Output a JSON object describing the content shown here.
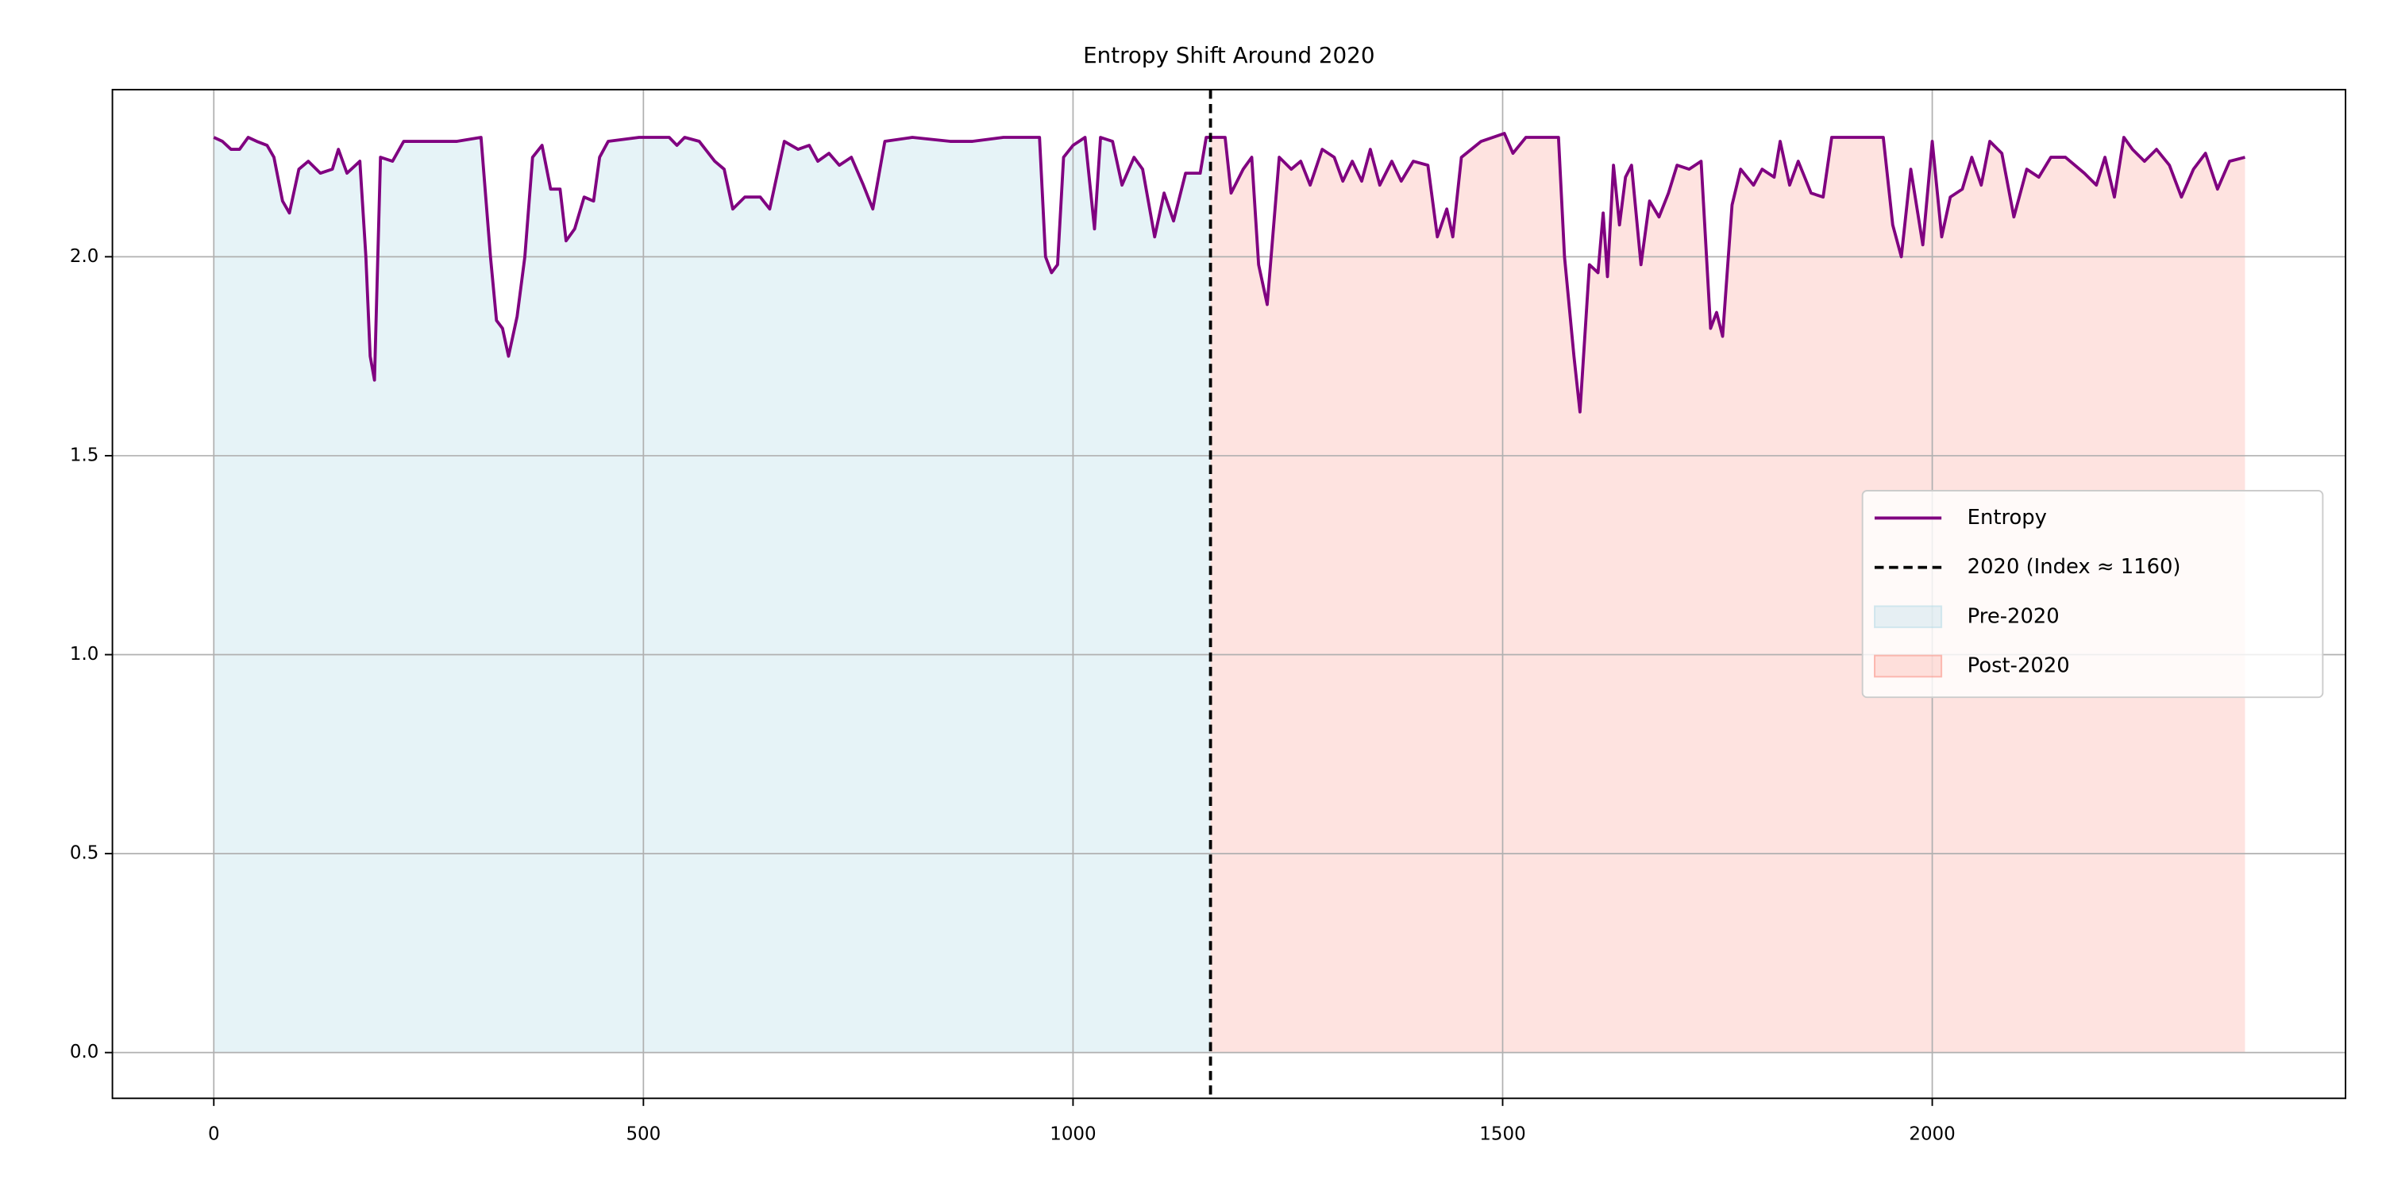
{
  "chart_data": {
    "type": "line",
    "title": "Entropy Shift Around 2020",
    "series": [
      {
        "name": "Entropy",
        "color": "#800080",
        "x": [
          0,
          10,
          20,
          30,
          40,
          50,
          62,
          70,
          80,
          88,
          99,
          110,
          124,
          138,
          145,
          155,
          170,
          177,
          182,
          187,
          194,
          208,
          221,
          247,
          283,
          311,
          322,
          329,
          336,
          343,
          353,
          362,
          371,
          382,
          392,
          403,
          410,
          420,
          431,
          442,
          449,
          459,
          495,
          530,
          539,
          548,
          565,
          583,
          594,
          604,
          618,
          636,
          647,
          657,
          664,
          680,
          693,
          703,
          716,
          728,
          742,
          756,
          767,
          781,
          813,
          857,
          883,
          919,
          961,
          968,
          975,
          982,
          989,
          1000,
          1014,
          1025,
          1032,
          1046,
          1057,
          1071,
          1081,
          1095,
          1106,
          1117,
          1131,
          1148,
          1155,
          1177,
          1184,
          1198,
          1208,
          1216,
          1226,
          1240,
          1254,
          1265,
          1276,
          1290,
          1304,
          1314,
          1325,
          1336,
          1346,
          1357,
          1371,
          1382,
          1396,
          1413,
          1424,
          1435,
          1442,
          1452,
          1475,
          1502,
          1512,
          1527,
          1565,
          1572,
          1583,
          1590,
          1601,
          1611,
          1617,
          1622,
          1629,
          1636,
          1643,
          1650,
          1661,
          1671,
          1682,
          1693,
          1703,
          1717,
          1731,
          1742,
          1749,
          1756,
          1767,
          1777,
          1792,
          1802,
          1816,
          1823,
          1834,
          1844,
          1859,
          1873,
          1883,
          1926,
          1943,
          1954,
          1964,
          1975,
          1989,
          2000,
          2011,
          2021,
          2035,
          2046,
          2057,
          2067,
          2081,
          2095,
          2110,
          2124,
          2138,
          2155,
          2177,
          2191,
          2201,
          2212,
          2223,
          2233,
          2247,
          2261,
          2276,
          2290,
          2304,
          2318,
          2332,
          2346,
          2364
        ],
        "values": [
          2.3,
          2.29,
          2.27,
          2.27,
          2.3,
          2.29,
          2.28,
          2.25,
          2.14,
          2.11,
          2.22,
          2.24,
          2.21,
          2.22,
          2.27,
          2.21,
          2.24,
          2.0,
          1.75,
          1.69,
          2.25,
          2.24,
          2.29,
          2.29,
          2.29,
          2.3,
          2.0,
          1.84,
          1.82,
          1.75,
          1.85,
          2.0,
          2.25,
          2.28,
          2.17,
          2.17,
          2.04,
          2.07,
          2.15,
          2.14,
          2.25,
          2.29,
          2.3,
          2.3,
          2.28,
          2.3,
          2.29,
          2.24,
          2.22,
          2.12,
          2.15,
          2.15,
          2.12,
          2.22,
          2.29,
          2.27,
          2.28,
          2.24,
          2.26,
          2.23,
          2.25,
          2.18,
          2.12,
          2.29,
          2.3,
          2.29,
          2.29,
          2.3,
          2.3,
          2.0,
          1.96,
          1.98,
          2.25,
          2.28,
          2.3,
          2.07,
          2.3,
          2.29,
          2.18,
          2.25,
          2.22,
          2.05,
          2.16,
          2.09,
          2.21,
          2.21,
          2.3,
          2.3,
          2.16,
          2.22,
          2.25,
          1.98,
          1.88,
          2.25,
          2.22,
          2.24,
          2.18,
          2.27,
          2.25,
          2.19,
          2.24,
          2.19,
          2.27,
          2.18,
          2.24,
          2.19,
          2.24,
          2.23,
          2.05,
          2.12,
          2.05,
          2.25,
          2.29,
          2.31,
          2.26,
          2.3,
          2.3,
          2.0,
          1.75,
          1.61,
          1.98,
          1.96,
          2.11,
          1.95,
          2.23,
          2.08,
          2.2,
          2.23,
          1.98,
          2.14,
          2.1,
          2.16,
          2.23,
          2.22,
          2.24,
          1.82,
          1.86,
          1.8,
          2.13,
          2.22,
          2.18,
          2.22,
          2.2,
          2.29,
          2.18,
          2.24,
          2.16,
          2.15,
          2.3,
          2.3,
          2.3,
          2.08,
          2.0,
          2.22,
          2.03,
          2.29,
          2.05,
          2.15,
          2.17,
          2.25,
          2.18,
          2.29,
          2.26,
          2.1,
          2.22,
          2.2,
          2.25,
          2.25,
          2.21,
          2.18,
          2.25,
          2.15,
          2.3,
          2.27,
          2.24,
          2.27,
          2.23,
          2.15,
          2.22,
          2.26,
          2.17,
          2.24,
          2.25
        ]
      }
    ],
    "vline": {
      "name": "2020 (Index ≈ 1160)",
      "x": 1160,
      "color": "#000000"
    },
    "regions": [
      {
        "name": "Pre-2020",
        "color": "#add8e6",
        "side": "before"
      },
      {
        "name": "Post-2020",
        "color": "#fa8072",
        "side": "after"
      }
    ],
    "xlim": [
      -118,
      2481
    ],
    "ylim": [
      -0.115,
      2.42
    ],
    "xticks": [
      0,
      500,
      1000,
      1500,
      2000
    ],
    "yticks": [
      {
        "value": 0,
        "label": "0.0"
      },
      {
        "value": 0.5,
        "label": "0.5"
      },
      {
        "value": 1,
        "label": "1.0"
      },
      {
        "value": 1.5,
        "label": "1.5"
      },
      {
        "value": 2,
        "label": "2.0"
      }
    ],
    "grid": true,
    "legend": "center right"
  }
}
